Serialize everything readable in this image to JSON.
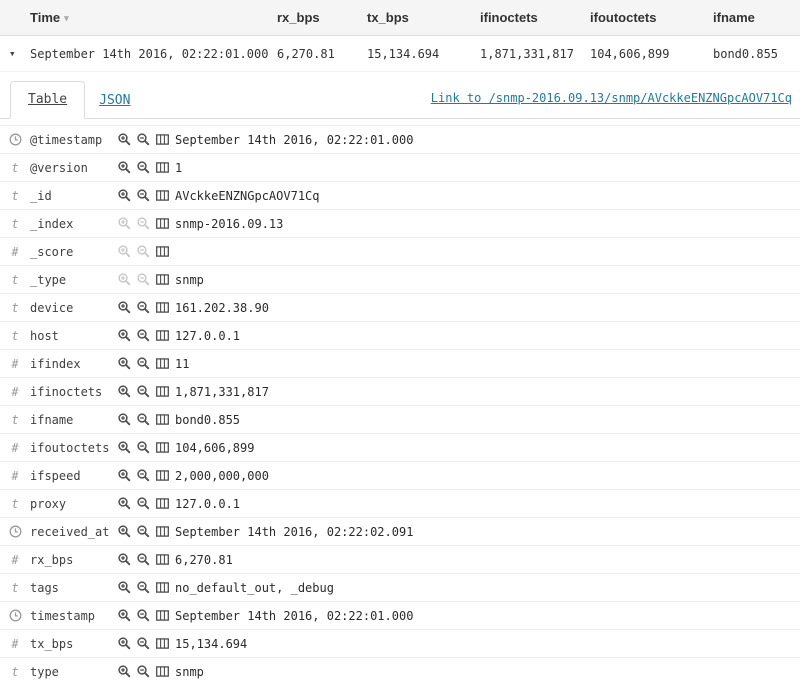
{
  "header": {
    "time": "Time",
    "rx_bps": "rx_bps",
    "tx_bps": "tx_bps",
    "ifinoctets": "ifinoctets",
    "ifoutoctets": "ifoutoctets",
    "ifname": "ifname"
  },
  "document_row": {
    "time": "September 14th 2016, 02:22:01.000",
    "rx_bps": "6,270.81",
    "tx_bps": "15,134.694",
    "ifinoctets": "1,871,331,817",
    "ifoutoctets": "104,606,899",
    "ifname": "bond0.855"
  },
  "tabs": {
    "table": "Table",
    "json": "JSON"
  },
  "doc_link_label": "Link to /snmp-2016.09.13/snmp/AVckkeENZNGpcAOV71Cq",
  "type_glyphs": {
    "string": "t",
    "number": "#"
  },
  "icons": {
    "expand_caret": "▾",
    "sort_caret": "▾",
    "date_type": "clock-icon",
    "string_type": "text-type-icon",
    "number_type": "number-type-icon",
    "filter_for": "magnify-plus-icon",
    "filter_out": "magnify-minus-icon",
    "toggle_column": "table-column-icon"
  },
  "colors": {
    "link": "#247b94",
    "header_bg": "#f5f5f5",
    "border": "#dddddd",
    "row_border": "#ededed",
    "icon_enabled": "#4d4d4d",
    "icon_disabled": "#c9c9c9"
  },
  "fields": [
    {
      "name": "@timestamp",
      "type": "date",
      "value": "September 14th 2016, 02:22:01.000",
      "filterable": true
    },
    {
      "name": "@version",
      "type": "string",
      "value": "1",
      "filterable": true
    },
    {
      "name": "_id",
      "type": "string",
      "value": "AVckkeENZNGpcAOV71Cq",
      "filterable": true
    },
    {
      "name": "_index",
      "type": "string",
      "value": "snmp-2016.09.13",
      "filterable": false
    },
    {
      "name": "_score",
      "type": "number",
      "value": "",
      "filterable": false
    },
    {
      "name": "_type",
      "type": "string",
      "value": "snmp",
      "filterable": false
    },
    {
      "name": "device",
      "type": "string",
      "value": "161.202.38.90",
      "filterable": true
    },
    {
      "name": "host",
      "type": "string",
      "value": "127.0.0.1",
      "filterable": true
    },
    {
      "name": "ifindex",
      "type": "number",
      "value": "11",
      "filterable": true
    },
    {
      "name": "ifinoctets",
      "type": "number",
      "value": "1,871,331,817",
      "filterable": true
    },
    {
      "name": "ifname",
      "type": "string",
      "value": "bond0.855",
      "filterable": true
    },
    {
      "name": "ifoutoctets",
      "type": "number",
      "value": "104,606,899",
      "filterable": true
    },
    {
      "name": "ifspeed",
      "type": "number",
      "value": "2,000,000,000",
      "filterable": true
    },
    {
      "name": "proxy",
      "type": "string",
      "value": "127.0.0.1",
      "filterable": true
    },
    {
      "name": "received_at",
      "type": "date",
      "value": "September 14th 2016, 02:22:02.091",
      "filterable": true
    },
    {
      "name": "rx_bps",
      "type": "number",
      "value": "6,270.81",
      "filterable": true
    },
    {
      "name": "tags",
      "type": "string",
      "value": "no_default_out, _debug",
      "filterable": true
    },
    {
      "name": "timestamp",
      "type": "date",
      "value": "September 14th 2016, 02:22:01.000",
      "filterable": true
    },
    {
      "name": "tx_bps",
      "type": "number",
      "value": "15,134.694",
      "filterable": true
    },
    {
      "name": "type",
      "type": "string",
      "value": "snmp",
      "filterable": true
    }
  ]
}
